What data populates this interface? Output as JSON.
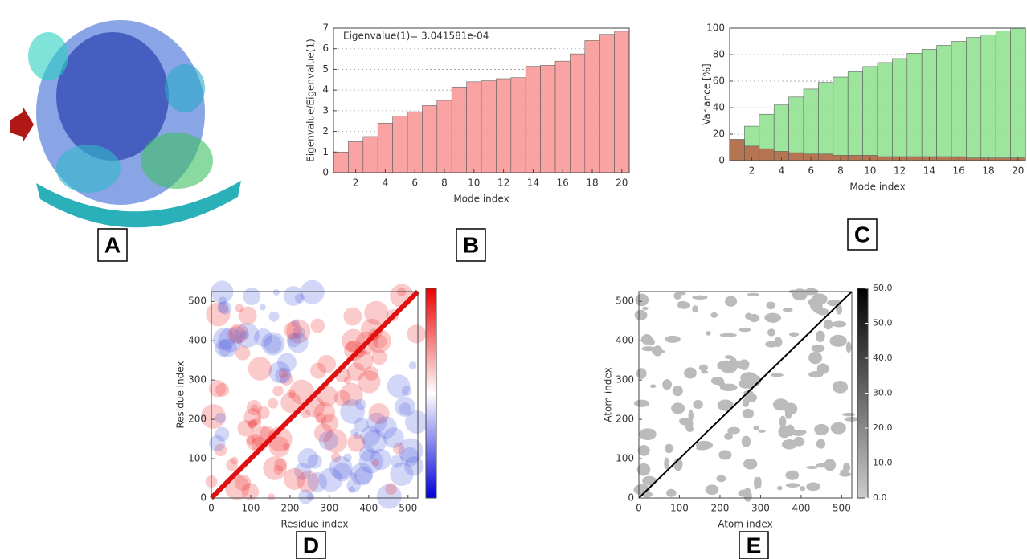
{
  "chart_data": [
    {
      "type": "image",
      "panel_label": "A"
    },
    {
      "type": "bar",
      "panel_label": "B",
      "annotation": "Eigenvalue(1)= 3.041581e-04",
      "x_label": "Mode index",
      "y_label": "Eigenvalue/Eigenvalue(1)",
      "x": [
        1,
        2,
        3,
        4,
        5,
        6,
        7,
        8,
        9,
        10,
        11,
        12,
        13,
        14,
        15,
        16,
        17,
        18,
        19,
        20
      ],
      "values": [
        1.0,
        1.5,
        1.75,
        2.4,
        2.75,
        2.95,
        3.25,
        3.5,
        4.15,
        4.4,
        4.45,
        4.55,
        4.6,
        5.15,
        5.2,
        5.4,
        5.75,
        6.4,
        6.7,
        6.85
      ],
      "color": "#f99a9a",
      "xlim": [
        0.5,
        20.5
      ],
      "xticks": [
        2,
        4,
        6,
        8,
        10,
        12,
        14,
        16,
        18,
        20
      ],
      "ylim": [
        0,
        7
      ],
      "yticks": [
        0,
        1,
        2,
        3,
        4,
        5,
        6,
        7
      ],
      "grid": true
    },
    {
      "type": "bar",
      "panel_label": "C",
      "x_label": "Mode index",
      "y_label": "Variance [%]",
      "x": [
        1,
        2,
        3,
        4,
        5,
        6,
        7,
        8,
        9,
        10,
        11,
        12,
        13,
        14,
        15,
        16,
        17,
        18,
        19,
        20
      ],
      "series": [
        {
          "color": "#93e293",
          "values": [
            16,
            26,
            35,
            42,
            48,
            54,
            59,
            63,
            67,
            71,
            74,
            77,
            81,
            84,
            87,
            90,
            93,
            95,
            98,
            100
          ]
        },
        {
          "color": "#b86a4a",
          "values": [
            16,
            11,
            9,
            7,
            6,
            5,
            5,
            4,
            4,
            4,
            3,
            3,
            3,
            3,
            3,
            3,
            2,
            2,
            2,
            2
          ]
        }
      ],
      "xlim": [
        0.5,
        20.5
      ],
      "xticks": [
        2,
        4,
        6,
        8,
        10,
        12,
        14,
        16,
        18,
        20
      ],
      "ylim": [
        0,
        100
      ],
      "yticks": [
        0,
        20,
        40,
        60,
        80,
        100
      ],
      "grid": true
    },
    {
      "type": "heatmap",
      "panel_label": "D",
      "x_label": "Residue index",
      "y_label": "Residue index",
      "xlim": [
        0,
        525
      ],
      "xticks": [
        0,
        100,
        200,
        300,
        400,
        500
      ],
      "ylim": [
        0,
        525
      ],
      "yticks": [
        0,
        100,
        200,
        300,
        400,
        500
      ]
    },
    {
      "type": "contact",
      "panel_label": "E",
      "x_label": "Atom index",
      "y_label": "Atom index",
      "xlim": [
        0,
        525
      ],
      "xticks": [
        0,
        100,
        200,
        300,
        400,
        500
      ],
      "ylim": [
        0,
        525
      ],
      "yticks": [
        0,
        100,
        200,
        300,
        400,
        500
      ],
      "cbar_lim": [
        0,
        60
      ],
      "cbar_ticks": [
        {
          "value": 0,
          "label": "0.0"
        },
        {
          "value": 10,
          "label": "10.0"
        },
        {
          "value": 20,
          "label": "20.0"
        },
        {
          "value": 30,
          "label": "30.0"
        },
        {
          "value": 40,
          "label": "40.0"
        },
        {
          "value": 50,
          "label": "50.0"
        },
        {
          "value": 60,
          "label": "60.0"
        }
      ]
    }
  ]
}
